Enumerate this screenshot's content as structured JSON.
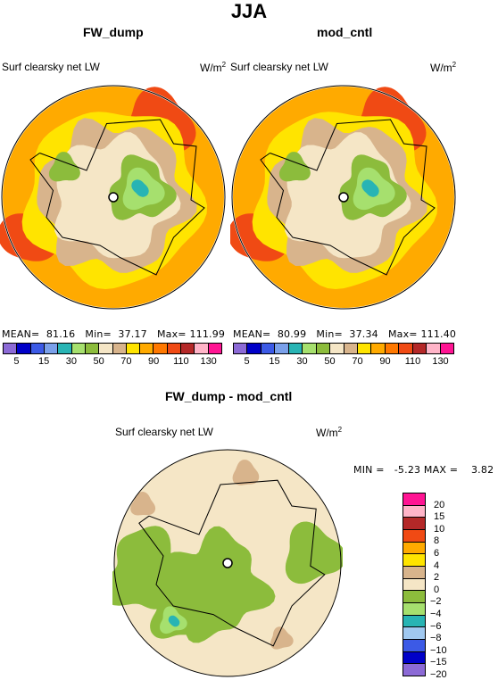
{
  "header": {
    "title": "JJA"
  },
  "panels": [
    {
      "title": "FW_dump",
      "variable": "Surf clearsky net LW",
      "units_base": "W/m",
      "units_exp": "2",
      "stats": {
        "mean": "81.16",
        "min": "37.17",
        "max": "111.99"
      }
    },
    {
      "title": "mod_cntl",
      "variable": "Surf clearsky net LW",
      "units_base": "W/m",
      "units_exp": "2",
      "stats": {
        "mean": "80.99",
        "min": "37.34",
        "max": "111.40"
      }
    }
  ],
  "stat_labels": {
    "mean": "MEAN=",
    "min": "Min=",
    "max": "Max="
  },
  "diff_panel": {
    "title": "FW_dump - mod_cntl",
    "variable": "Surf clearsky net LW",
    "units_base": "W/m",
    "units_exp": "2",
    "stats_text": "MIN =   -5.23 MAX =    3.82"
  },
  "abs_colorbar": {
    "colors": [
      "#8c6ad6",
      "#0000c8",
      "#3c5ae6",
      "#7aa0ea",
      "#28b4b4",
      "#a6e06e",
      "#8cbc3c",
      "#f5e6c6",
      "#d8b48c",
      "#ffe400",
      "#ffaa00",
      "#ff7800",
      "#f04a14",
      "#b42828",
      "#ffb4c8",
      "#ff1493"
    ],
    "labels": [
      "5",
      "15",
      "30",
      "50",
      "70",
      "90",
      "110",
      "130"
    ]
  },
  "diff_colorbar": {
    "colors": [
      "#ff1493",
      "#ffb4c8",
      "#b42828",
      "#f04a14",
      "#ffaa00",
      "#ffe400",
      "#d8b48c",
      "#f5e6c6",
      "#8cbc3c",
      "#a6e06e",
      "#28b4b4",
      "#a0c8f0",
      "#3c5ae6",
      "#0000c8",
      "#8c6ad6"
    ],
    "labels": [
      "20",
      "15",
      "10",
      "8",
      "6",
      "4",
      "2",
      "0",
      "−2",
      "−4",
      "−6",
      "−8",
      "−10",
      "−15",
      "−20"
    ]
  },
  "map_colors": {
    "outer": "#ffaa00",
    "ring": "#ffe400",
    "rim_red": "#f04a14",
    "tan": "#d8b48c",
    "cream": "#f5e6c6",
    "green": "#8cbc3c",
    "lightgreen": "#a6e06e",
    "teal": "#28b4b4",
    "coast": "#000000"
  }
}
